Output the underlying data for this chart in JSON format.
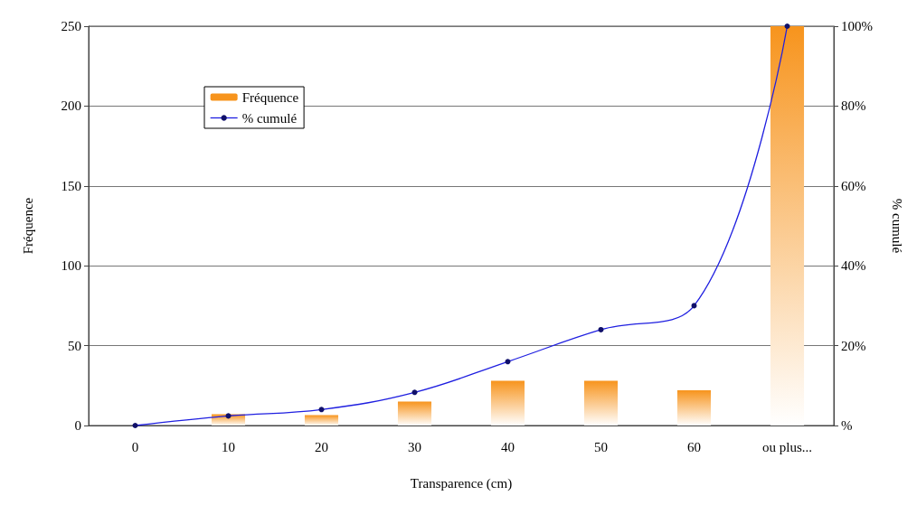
{
  "chart_data": {
    "type": "bar",
    "xlabel": "Transparence (cm)",
    "ylabel": "Fréquence",
    "y2label": "% cumulé",
    "categories": [
      "0",
      "10",
      "20",
      "30",
      "40",
      "50",
      "60",
      "ou plus..."
    ],
    "series": [
      {
        "name": "Fréquence",
        "color": "#f7941d",
        "values": [
          0,
          7,
          6.5,
          15,
          28,
          28,
          22,
          250
        ]
      },
      {
        "name": "% cumulé",
        "type": "line",
        "axis": "y2",
        "color": "#1f1fe0",
        "values": [
          0,
          2.4,
          4,
          8.3,
          16,
          24,
          30,
          100
        ]
      }
    ],
    "ylim": [
      0,
      250
    ],
    "yticks": [
      0,
      50,
      100,
      150,
      200,
      250
    ],
    "y2lim": [
      0,
      100
    ],
    "y2ticks": [
      {
        "value": 0,
        "label": "%"
      },
      {
        "value": 20,
        "label": "20%"
      },
      {
        "value": 40,
        "label": "40%"
      },
      {
        "value": 60,
        "label": "60%"
      },
      {
        "value": 80,
        "label": "80%"
      },
      {
        "value": 100,
        "label": "100%"
      }
    ],
    "grid": "y",
    "legend": "top left",
    "marker": "circle"
  }
}
